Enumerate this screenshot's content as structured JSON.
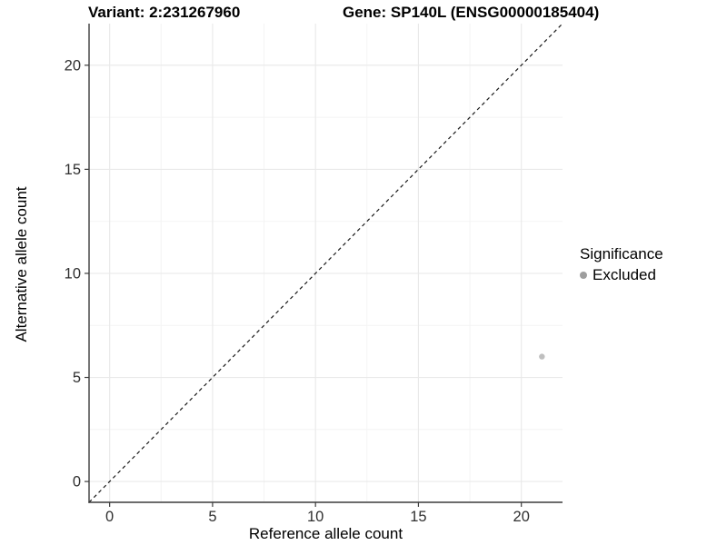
{
  "chart_data": {
    "type": "scatter",
    "title_left": "Variant: 2:231267960",
    "title_right": "Gene: SP140L (ENSG00000185404)",
    "xlabel": "Reference allele count",
    "ylabel": "Alternative allele count",
    "xlim": [
      -1,
      22
    ],
    "ylim": [
      -1,
      22
    ],
    "xticks": [
      0,
      5,
      10,
      15,
      20
    ],
    "yticks": [
      0,
      5,
      10,
      15,
      20
    ],
    "grid": "major+minor",
    "grid_major_color": "#e9e9e9",
    "grid_minor_color": "#f4f4f4",
    "axis_line_color": "#3c3c3c",
    "tick_label_color": "#303030",
    "reference_line": {
      "type": "identity-diagonal",
      "style": "dashed",
      "from": [
        -1,
        -1
      ],
      "to": [
        22,
        22
      ],
      "color": "#1a1a1a"
    },
    "series": [
      {
        "name": "Excluded",
        "color": "#bfbfbf",
        "points": [
          {
            "x": 21,
            "y": 6
          }
        ]
      }
    ],
    "legend": {
      "title": "Significance",
      "position": "right",
      "items": [
        {
          "label": "Excluded",
          "color": "#9e9e9e"
        }
      ]
    }
  }
}
